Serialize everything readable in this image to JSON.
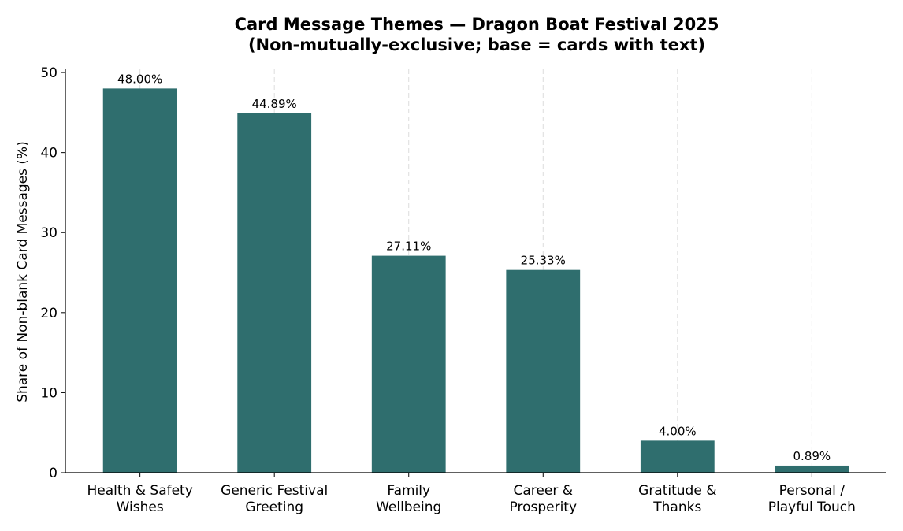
{
  "chart_data": {
    "type": "bar",
    "title": "Card Message Themes — Dragon Boat Festival 2025",
    "subtitle": "(Non-mutually-exclusive; base = cards with text)",
    "y_label": "Share of Non-blank Card Messages (%)",
    "categories": [
      "Health & Safety\nWishes",
      "Generic Festival\nGreeting",
      "Family\nWellbeing",
      "Career &\nProsperity",
      "Gratitude &\nThanks",
      "Personal /\nPlayful Touch"
    ],
    "values": [
      48.0,
      44.89,
      27.11,
      25.33,
      4.0,
      0.89
    ],
    "value_labels": [
      "48.00%",
      "44.89%",
      "27.11%",
      "25.33%",
      "4.00%",
      "0.89%"
    ],
    "color": "#2f6e6e",
    "ylim": [
      0,
      50.4
    ],
    "yticks": [
      0,
      10,
      20,
      30,
      40,
      50
    ],
    "grid": "x"
  }
}
